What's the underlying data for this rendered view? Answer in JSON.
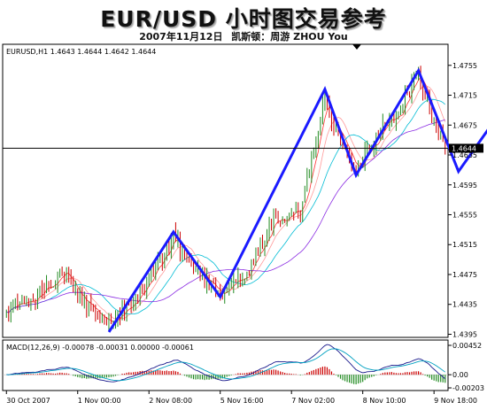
{
  "header": {
    "title": "EUR/USD 小时图交易参考",
    "subtitle_date": "2007年11月12日",
    "subtitle_author": "凯斯顿：周游 ZHOU You"
  },
  "chart_data": [
    {
      "type": "line",
      "panel": "price",
      "info_label": "EURUSD,H1  1.4643 1.4644 1.4642 1.4644",
      "symbol": "EURUSD",
      "timeframe": "H1",
      "ohlc": [
        1.4643,
        1.4644,
        1.4642,
        1.4644
      ],
      "current_price": 1.4644,
      "current_price_label": "1.4644",
      "ylim": [
        1.4392,
        1.4782
      ],
      "y_ticks": [
        1.4755,
        1.4715,
        1.4675,
        1.4635,
        1.4595,
        1.4555,
        1.4515,
        1.4475,
        1.4435,
        1.4395
      ],
      "y_tick_labels": [
        "1.4755",
        "1.4715",
        "1.4675",
        "1.4635",
        "1.4595",
        "1.4555",
        "1.4515",
        "1.4475",
        "1.4435",
        "1.4395"
      ],
      "x_tick_labels": [
        "30 Oct 2007",
        "1 Nov 00:00",
        "2 Nov 08:00",
        "5 Nov 16:00",
        "7 Nov 02:00",
        "8 Nov 10:00",
        "9 Nov 18:00"
      ],
      "x_tick_index": [
        0,
        32,
        64,
        96,
        128,
        160,
        192
      ],
      "bars": 198,
      "colors": {
        "bull": "#228B22",
        "bear": "#cc0000",
        "wave": "#1a1aff",
        "ma_fast": "#ff3333",
        "ma_mid": "#ff9999",
        "ma_slow": "#8a2be2",
        "ma_long": "#00bcd4"
      },
      "wave_pattern": {
        "x": [
          46,
          75,
          96,
          143,
          157,
          185,
          203,
          222
        ],
        "y": [
          1.4398,
          1.4532,
          1.4445,
          1.4723,
          1.4608,
          1.4748,
          1.4613,
          1.4693
        ],
        "arrow_at_end": true
      },
      "grid": false
    },
    {
      "type": "line",
      "panel": "indicator",
      "info_label": "MACD(12,26,9) -0.00078 -0.00031 0.00000 -0.00061",
      "params": [
        12,
        26,
        9
      ],
      "values": [
        -0.00078,
        -0.00031,
        0.0,
        -0.00061
      ],
      "ylim": [
        -0.0023,
        0.0052
      ],
      "y_ticks": [
        0.00452,
        0.0,
        -0.00203
      ],
      "y_tick_labels": [
        "0.00452",
        "0.00",
        "-0.00203"
      ],
      "grid": false
    }
  ]
}
